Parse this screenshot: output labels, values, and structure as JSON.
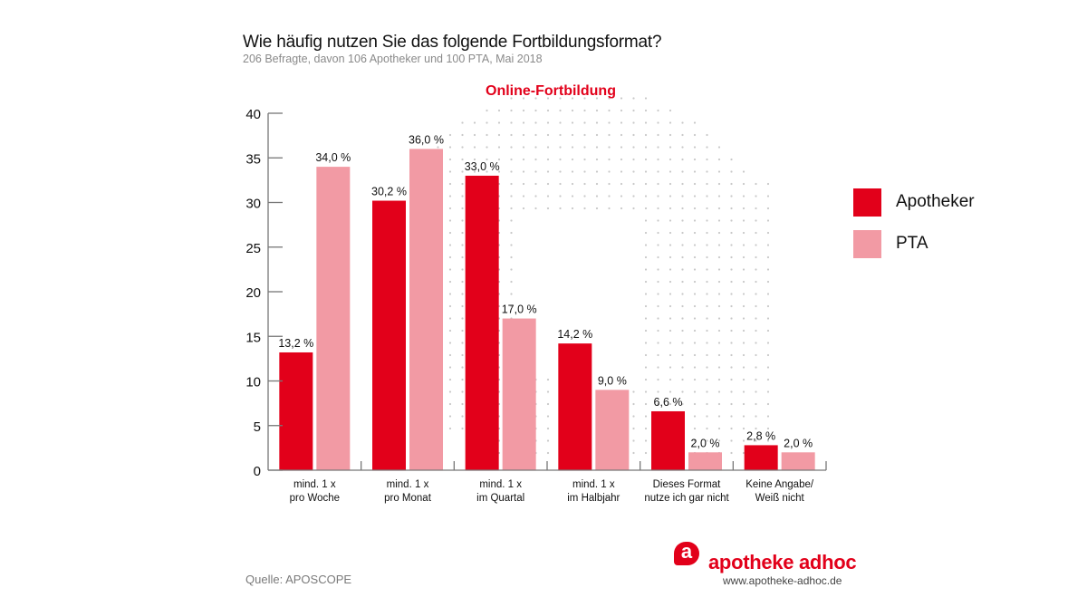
{
  "header": {
    "title": "Wie häufig nutzen Sie das folgende Fortbildungsformat?",
    "subtitle": "206 Befragte, davon 106 Apotheker und 100 PTA, Mai 2018",
    "chart_heading": "Online-Fortbildung"
  },
  "footer": {
    "source": "Quelle: APOSCOPE",
    "brand": "apotheke adhoc",
    "brand_mark": "a",
    "url": "www.apotheke-adhoc.de"
  },
  "colors": {
    "apotheker": "#e2001a",
    "pta": "#f29aa4",
    "accent": "#e2001a",
    "dots": "#c8c8c8"
  },
  "chart_data": {
    "type": "bar",
    "title": "Wie häufig nutzen Sie das folgende Fortbildungsformat?",
    "subtitle": "Online-Fortbildung",
    "xlabel": "",
    "ylabel": "",
    "ylim": [
      0,
      40
    ],
    "yticks": [
      0,
      5,
      10,
      15,
      20,
      25,
      30,
      35,
      40
    ],
    "grid": false,
    "legend_position": "right",
    "categories": [
      [
        "mind. 1 x",
        "pro Woche"
      ],
      [
        "mind. 1 x",
        "pro Monat"
      ],
      [
        "mind. 1 x",
        "im Quartal"
      ],
      [
        "mind. 1 x",
        "im Halbjahr"
      ],
      [
        "Dieses Format",
        "nutze ich gar nicht"
      ],
      [
        "Keine Angabe/",
        "Weiß nicht"
      ]
    ],
    "series": [
      {
        "name": "Apotheker",
        "values": [
          13.2,
          30.2,
          33.0,
          14.2,
          6.6,
          2.8
        ],
        "labels": [
          "13,2 %",
          "30,2 %",
          "33,0 %",
          "14,2 %",
          "6,6 %",
          "2,8 %"
        ]
      },
      {
        "name": "PTA",
        "values": [
          34.0,
          36.0,
          17.0,
          9.0,
          2.0,
          2.0
        ],
        "labels": [
          "34,0 %",
          "36,0 %",
          "17,0 %",
          "9,0 %",
          "2,0 %",
          "2,0 %"
        ]
      }
    ]
  }
}
